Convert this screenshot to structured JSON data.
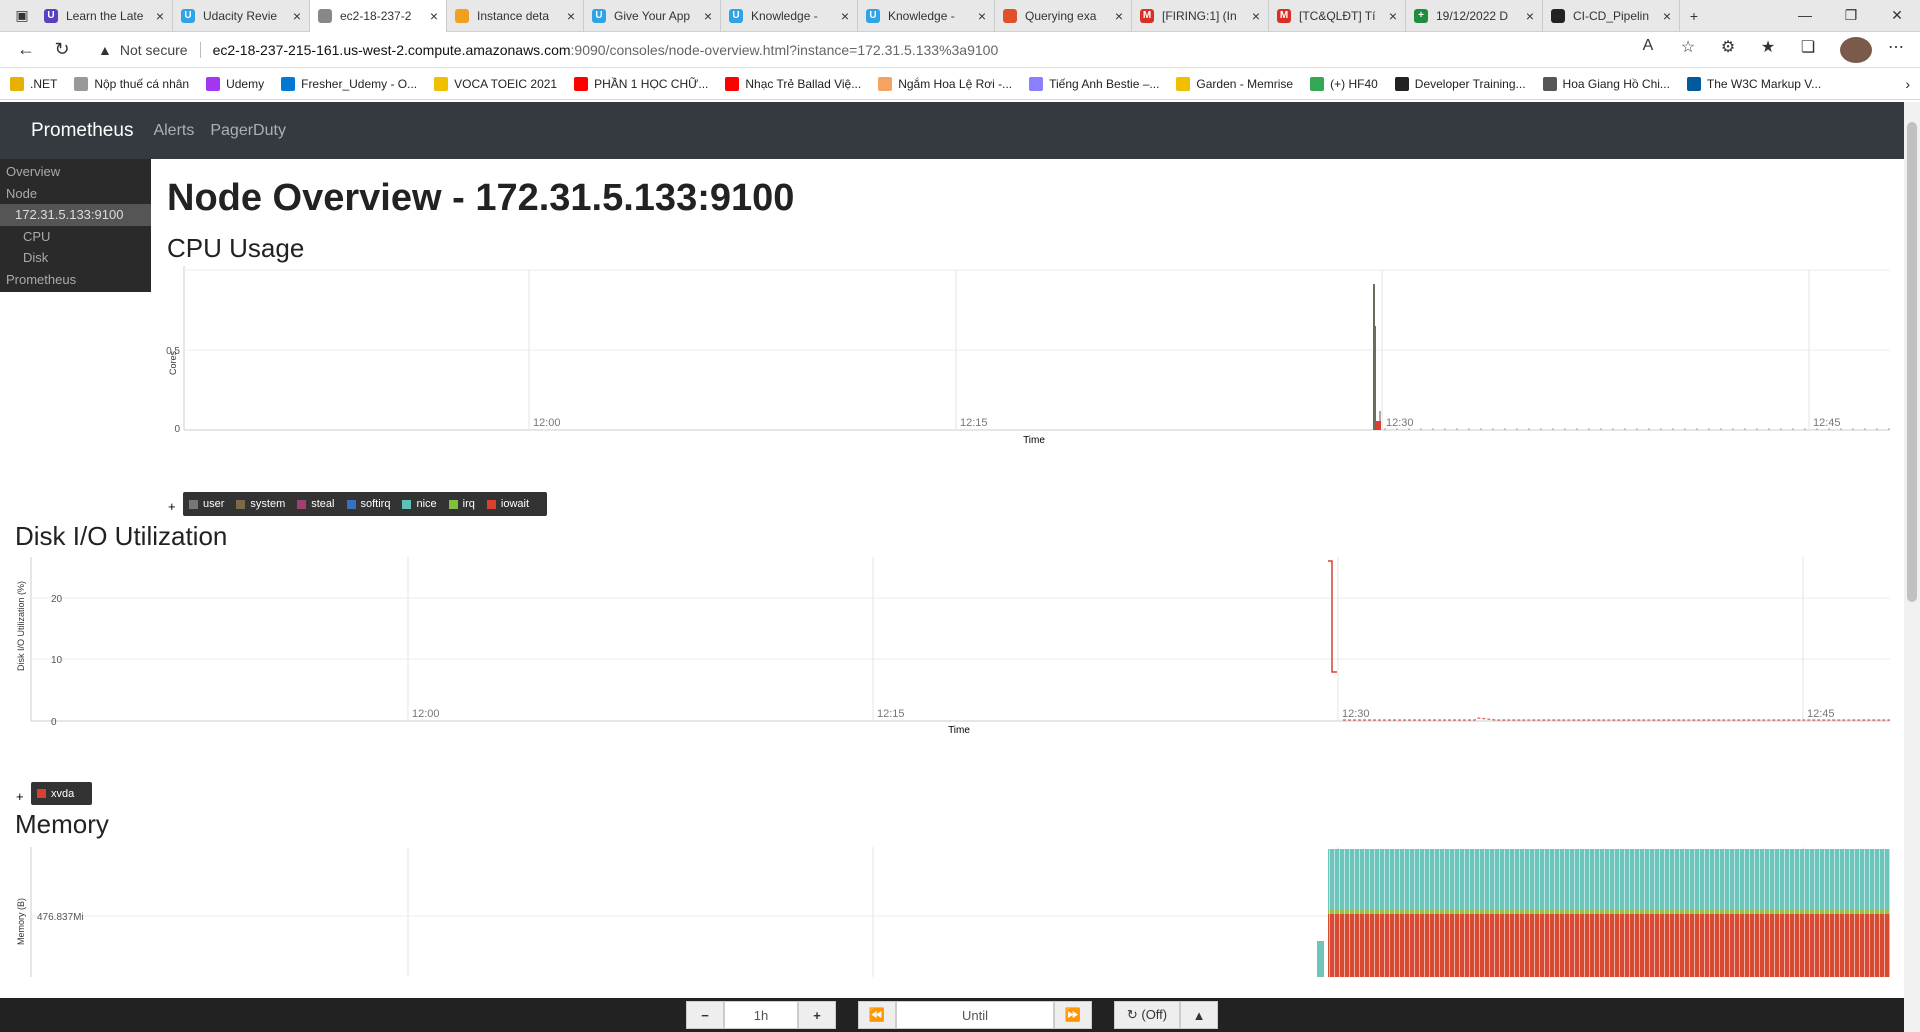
{
  "browser": {
    "tabs": [
      {
        "title": "Learn the Late",
        "color": "#5a3fc0",
        "glyph": "U"
      },
      {
        "title": "Udacity Revie",
        "color": "#2fa3e6",
        "glyph": "U"
      },
      {
        "title": "ec2-18-237-2",
        "color": "#888888",
        "glyph": ""
      },
      {
        "title": "Instance deta",
        "color": "#f0a020",
        "glyph": ""
      },
      {
        "title": "Give Your App",
        "color": "#2fa3e6",
        "glyph": "U"
      },
      {
        "title": "Knowledge -",
        "color": "#2fa3e6",
        "glyph": "U"
      },
      {
        "title": "Knowledge -",
        "color": "#2fa3e6",
        "glyph": "U"
      },
      {
        "title": "Querying exa",
        "color": "#e0502a",
        "glyph": ""
      },
      {
        "title": "[FIRING:1] (In",
        "color": "#d93025",
        "glyph": "M"
      },
      {
        "title": "[TC&QLĐT] Tí",
        "color": "#d93025",
        "glyph": "M"
      },
      {
        "title": "19/12/2022 D",
        "color": "#1e8e3e",
        "glyph": "+"
      },
      {
        "title": "CI-CD_Pipelin",
        "color": "#222222",
        "glyph": ""
      }
    ],
    "active_tab_index": 2,
    "url_warning": "Not secure",
    "url_host": "ec2-18-237-215-161.us-west-2.compute.amazonaws.com",
    "url_path": ":9090/consoles/node-overview.html?instance=172.31.5.133%3a9100",
    "bookmarks": [
      {
        "label": ".NET",
        "color": "#e8b000"
      },
      {
        "label": "Nộp thuế cá nhân",
        "color": "#999999"
      },
      {
        "label": "Udemy",
        "color": "#a435f0"
      },
      {
        "label": "Fresher_Udemy - O...",
        "color": "#0078d4"
      },
      {
        "label": "VOCA TOEIC 2021",
        "color": "#f0c000"
      },
      {
        "label": "PHẦN 1 HỌC CHỮ...",
        "color": "#ff0000"
      },
      {
        "label": "Nhạc Trẻ Ballad Việ...",
        "color": "#ff0000"
      },
      {
        "label": "Ngắm Hoa Lệ Rơi -...",
        "color": "#f4a460"
      },
      {
        "label": "Tiếng Anh Bestie –...",
        "color": "#8a7fff"
      },
      {
        "label": "Garden - Memrise",
        "color": "#f0c000"
      },
      {
        "label": "(+) HF40",
        "color": "#34a853"
      },
      {
        "label": "Developer Training...",
        "color": "#222222"
      },
      {
        "label": "Hoa Giang Hồ Chi...",
        "color": "#555555"
      },
      {
        "label": "The W3C Markup V...",
        "color": "#005a9c"
      }
    ]
  },
  "nav": {
    "brand": "Prometheus",
    "links": [
      "Alerts",
      "PagerDuty"
    ]
  },
  "sidebar": {
    "items": [
      {
        "label": "Overview",
        "level": 0
      },
      {
        "label": "Node",
        "level": 0
      },
      {
        "label": "172.31.5.133:9100",
        "level": 1,
        "selected": true
      },
      {
        "label": "CPU",
        "level": 2
      },
      {
        "label": "Disk",
        "level": 2
      },
      {
        "label": "Prometheus",
        "level": 0
      }
    ]
  },
  "page_title": "Node Overview - 172.31.5.133:9100",
  "sections": {
    "cpu": {
      "title": "CPU Usage",
      "ylabel": "Cores",
      "xlabel": "Time",
      "yticks": [
        "0.5",
        "0"
      ],
      "xticks": [
        "12:00",
        "12:15",
        "12:30",
        "12:45"
      ],
      "legend": [
        {
          "name": "user",
          "color": "#777777"
        },
        {
          "name": "system",
          "color": "#7a6a4a"
        },
        {
          "name": "steal",
          "color": "#a04070"
        },
        {
          "name": "softirq",
          "color": "#3a6ec0"
        },
        {
          "name": "nice",
          "color": "#5fc0b8"
        },
        {
          "name": "irq",
          "color": "#80c040"
        },
        {
          "name": "iowait",
          "color": "#d94030"
        }
      ]
    },
    "disk": {
      "title": "Disk I/O Utilization",
      "ylabel": "Disk I/O Utilization (%)",
      "xlabel": "Time",
      "yticks": [
        "20",
        "10",
        "0"
      ],
      "xticks": [
        "12:00",
        "12:15",
        "12:30",
        "12:45"
      ],
      "legend": [
        {
          "name": "xvda",
          "color": "#d94030"
        }
      ]
    },
    "memory": {
      "title": "Memory",
      "ylabel": "Memory (B)",
      "yticks": [
        "476.837Mi"
      ]
    }
  },
  "time_control": {
    "minus": "−",
    "range": "1h",
    "plus": "+",
    "back": "⏪",
    "until_placeholder": "Until",
    "forward": "⏩",
    "refresh": "↻ (Off)",
    "up": "▲"
  }
}
